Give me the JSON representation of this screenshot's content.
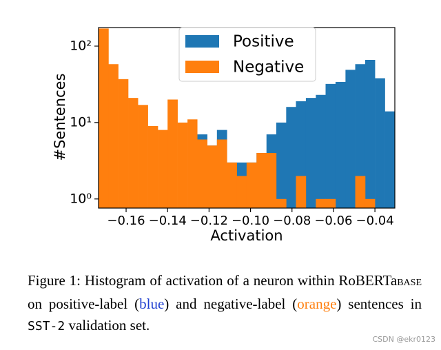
{
  "chart_data": {
    "type": "histogram",
    "xlabel": "Activation",
    "ylabel": "#Sentences",
    "log_scale_y": true,
    "legend": "upper center",
    "bins": [
      -0.1733,
      -0.1685,
      -0.1638,
      -0.159,
      -0.1543,
      -0.1495,
      -0.1447,
      -0.14,
      -0.1352,
      -0.1304,
      -0.1257,
      -0.1209,
      -0.1162,
      -0.1114,
      -0.1066,
      -0.1019,
      -0.0971,
      -0.0923,
      -0.0876,
      -0.0828,
      -0.0781,
      -0.0733,
      -0.0685,
      -0.0638,
      -0.059,
      -0.0542,
      -0.0495,
      -0.0447,
      -0.04,
      -0.0352,
      -0.0304
    ],
    "series": [
      {
        "name": "Positive",
        "color": "#1f77b4",
        "values": [
          0,
          0,
          0,
          0,
          0,
          0,
          0,
          0,
          0,
          0,
          7,
          5,
          8,
          3,
          3,
          3,
          4,
          7,
          10,
          16,
          19,
          21,
          23,
          32,
          34,
          49,
          58,
          66,
          38,
          14
        ]
      },
      {
        "name": "Negative",
        "color": "#ff7f0e",
        "values": [
          170,
          58,
          37,
          21,
          17,
          9,
          8,
          20,
          10,
          11,
          6,
          5,
          6,
          3,
          2,
          3,
          4,
          4,
          1,
          0,
          2,
          0,
          1,
          1,
          0,
          0,
          2,
          1,
          0,
          0
        ]
      }
    ],
    "xlim": [
      -0.1733,
      -0.0304
    ],
    "ylim": [
      0.76,
      175
    ],
    "xticks": [
      {
        "value": -0.16,
        "label": "−0.16"
      },
      {
        "value": -0.14,
        "label": "−0.14"
      },
      {
        "value": -0.12,
        "label": "−0.12"
      },
      {
        "value": -0.1,
        "label": "−0.10"
      },
      {
        "value": -0.08,
        "label": "−0.08"
      },
      {
        "value": -0.06,
        "label": "−0.06"
      },
      {
        "value": -0.04,
        "label": "−0.04"
      }
    ],
    "yticks": [
      {
        "value": 1,
        "label": "10⁰"
      },
      {
        "value": 10,
        "label": "10¹"
      },
      {
        "value": 100,
        "label": "10²"
      }
    ]
  },
  "caption": [
    "Figure 1: Histogram of activation of a neuron within RoBERTa",
    "BASE",
    " on positive-label (",
    "blue",
    ") and negative-label (",
    "orange",
    ") sentences in ",
    "SST-2",
    " validation set."
  ],
  "watermark": "CSDN @ekr0123"
}
